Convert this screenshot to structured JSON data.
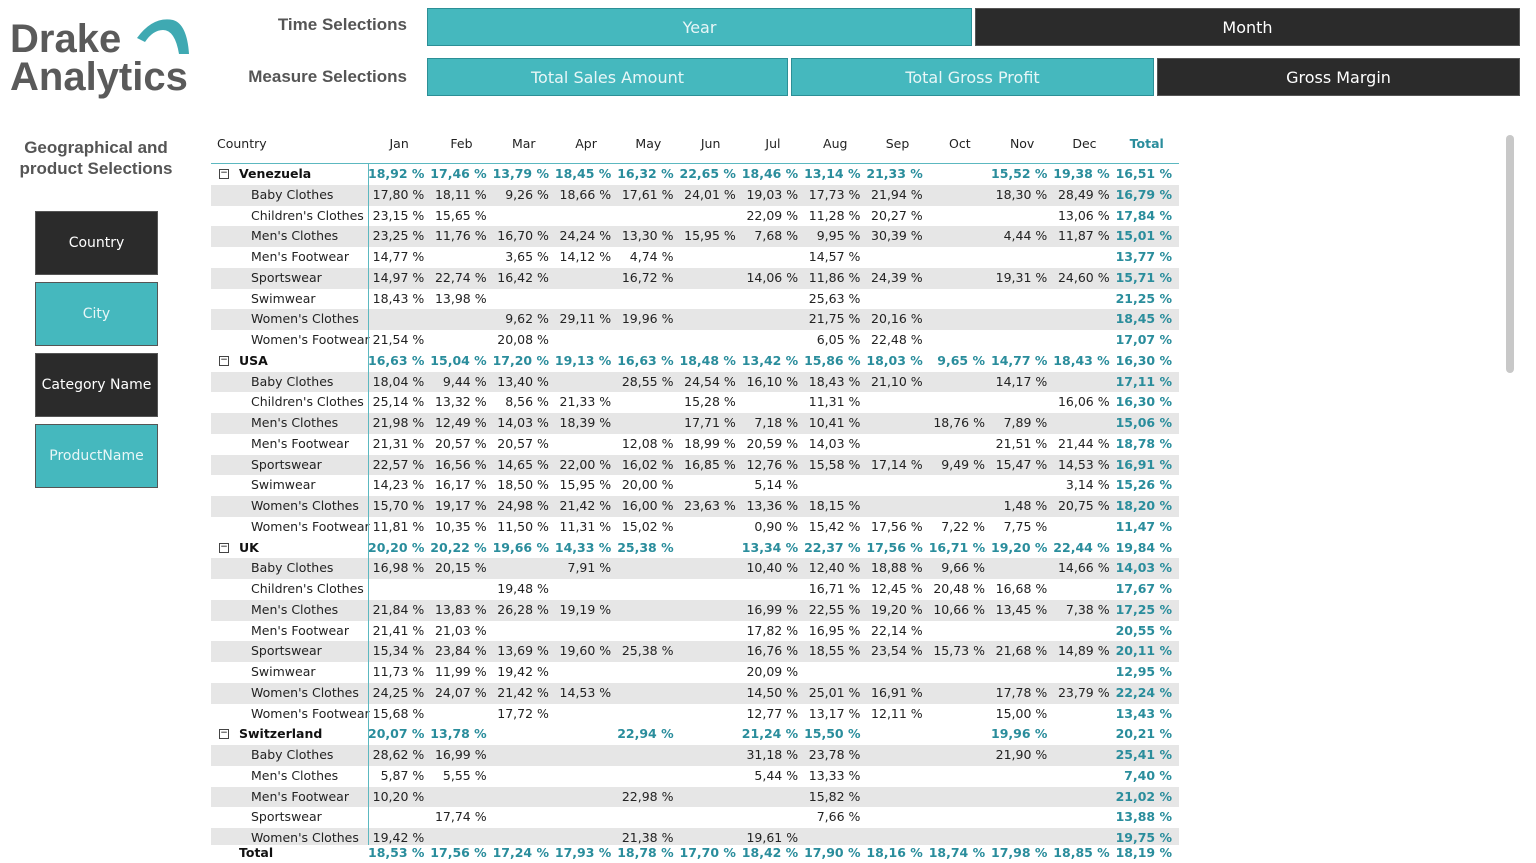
{
  "logo": {
    "line1": "Drake",
    "line2": "Analytics"
  },
  "time_selections": {
    "label": "Time Selections",
    "options": [
      "Year",
      "Month"
    ]
  },
  "measure_selections": {
    "label": "Measure Selections",
    "options": [
      "Total Sales Amount",
      "Total Gross Profit",
      "Gross Margin"
    ]
  },
  "slicer_panel": {
    "title": "Geographical and product Selections",
    "buttons": [
      "Country",
      "City",
      "Category Name",
      "ProductName"
    ]
  },
  "table": {
    "columns": [
      "Country",
      "Jan",
      "Feb",
      "Mar",
      "Apr",
      "May",
      "Jun",
      "Jul",
      "Aug",
      "Sep",
      "Oct",
      "Nov",
      "Dec",
      "Total"
    ],
    "groups": [
      {
        "name": "Venezuela",
        "values": [
          "18,92 %",
          "17,46 %",
          "13,79 %",
          "18,45 %",
          "16,32 %",
          "22,65 %",
          "18,46 %",
          "13,14 %",
          "21,33 %",
          null,
          "15,52 %",
          "19,38 %",
          "16,51 %"
        ],
        "products": [
          {
            "name": "Baby Clothes",
            "values": [
              "17,80 %",
              "18,11 %",
              "9,26 %",
              "18,66 %",
              "17,61 %",
              "24,01 %",
              "19,03 %",
              "17,73 %",
              "21,94 %",
              null,
              "18,30 %",
              "28,49 %",
              "16,79 %"
            ]
          },
          {
            "name": "Children's Clothes",
            "values": [
              "23,15 %",
              "15,65 %",
              null,
              null,
              null,
              null,
              "22,09 %",
              "11,28 %",
              "20,27 %",
              null,
              null,
              "13,06 %",
              "17,84 %"
            ]
          },
          {
            "name": "Men's Clothes",
            "values": [
              "23,25 %",
              "11,76 %",
              "16,70 %",
              "24,24 %",
              "13,30 %",
              "15,95 %",
              "7,68 %",
              "9,95 %",
              "30,39 %",
              null,
              "4,44 %",
              "11,87 %",
              "15,01 %"
            ]
          },
          {
            "name": "Men's Footwear",
            "values": [
              "14,77 %",
              null,
              "3,65 %",
              "14,12 %",
              "4,74 %",
              null,
              null,
              "14,57 %",
              null,
              null,
              null,
              null,
              "13,77 %"
            ]
          },
          {
            "name": "Sportswear",
            "values": [
              "14,97 %",
              "22,74 %",
              "16,42 %",
              null,
              "16,72 %",
              null,
              "14,06 %",
              "11,86 %",
              "24,39 %",
              null,
              "19,31 %",
              "24,60 %",
              "15,71 %"
            ]
          },
          {
            "name": "Swimwear",
            "values": [
              "18,43 %",
              "13,98 %",
              null,
              null,
              null,
              null,
              null,
              "25,63 %",
              null,
              null,
              null,
              null,
              "21,25 %"
            ]
          },
          {
            "name": "Women's Clothes",
            "values": [
              null,
              null,
              "9,62 %",
              "29,11 %",
              "19,96 %",
              null,
              null,
              "21,75 %",
              "20,16 %",
              null,
              null,
              null,
              "18,45 %"
            ]
          },
          {
            "name": "Women's Footwear",
            "values": [
              "21,54 %",
              null,
              "20,08 %",
              null,
              null,
              null,
              null,
              "6,05 %",
              "22,48 %",
              null,
              null,
              null,
              "17,07 %"
            ]
          }
        ]
      },
      {
        "name": "USA",
        "values": [
          "16,63 %",
          "15,04 %",
          "17,20 %",
          "19,13 %",
          "16,63 %",
          "18,48 %",
          "13,42 %",
          "15,86 %",
          "18,03 %",
          "9,65 %",
          "14,77 %",
          "18,43 %",
          "16,30 %"
        ],
        "products": [
          {
            "name": "Baby Clothes",
            "values": [
              "18,04 %",
              "9,44 %",
              "13,40 %",
              null,
              "28,55 %",
              "24,54 %",
              "16,10 %",
              "18,43 %",
              "21,10 %",
              null,
              "14,17 %",
              null,
              "17,11 %"
            ]
          },
          {
            "name": "Children's Clothes",
            "values": [
              "25,14 %",
              "13,32 %",
              "8,56 %",
              "21,33 %",
              null,
              "15,28 %",
              null,
              "11,31 %",
              null,
              null,
              null,
              "16,06 %",
              "16,30 %"
            ]
          },
          {
            "name": "Men's Clothes",
            "values": [
              "21,98 %",
              "12,49 %",
              "14,03 %",
              "18,39 %",
              null,
              "17,71 %",
              "7,18 %",
              "10,41 %",
              null,
              "18,76 %",
              "7,89 %",
              null,
              "15,06 %"
            ]
          },
          {
            "name": "Men's Footwear",
            "values": [
              "21,31 %",
              "20,57 %",
              "20,57 %",
              null,
              "12,08 %",
              "18,99 %",
              "20,59 %",
              "14,03 %",
              null,
              null,
              "21,51 %",
              "21,44 %",
              "18,78 %"
            ]
          },
          {
            "name": "Sportswear",
            "values": [
              "22,57 %",
              "16,56 %",
              "14,65 %",
              "22,00 %",
              "16,02 %",
              "16,85 %",
              "12,76 %",
              "15,58 %",
              "17,14 %",
              "9,49 %",
              "15,47 %",
              "14,53 %",
              "16,91 %"
            ]
          },
          {
            "name": "Swimwear",
            "values": [
              "14,23 %",
              "16,17 %",
              "18,50 %",
              "15,95 %",
              "20,00 %",
              null,
              "5,14 %",
              null,
              null,
              null,
              null,
              "3,14 %",
              "15,26 %"
            ]
          },
          {
            "name": "Women's Clothes",
            "values": [
              "15,70 %",
              "19,17 %",
              "24,98 %",
              "21,42 %",
              "16,00 %",
              "23,63 %",
              "13,36 %",
              "18,15 %",
              null,
              null,
              "1,48 %",
              "20,75 %",
              "18,20 %"
            ]
          },
          {
            "name": "Women's Footwear",
            "values": [
              "11,81 %",
              "10,35 %",
              "11,50 %",
              "11,31 %",
              "15,02 %",
              null,
              "0,90 %",
              "15,42 %",
              "17,56 %",
              "7,22 %",
              "7,75 %",
              null,
              "11,47 %"
            ]
          }
        ]
      },
      {
        "name": "UK",
        "values": [
          "20,20 %",
          "20,22 %",
          "19,66 %",
          "14,33 %",
          "25,38 %",
          null,
          "13,34 %",
          "22,37 %",
          "17,56 %",
          "16,71 %",
          "19,20 %",
          "22,44 %",
          "19,84 %"
        ],
        "products": [
          {
            "name": "Baby Clothes",
            "values": [
              "16,98 %",
              "20,15 %",
              null,
              "7,91 %",
              null,
              null,
              "10,40 %",
              "12,40 %",
              "18,88 %",
              "9,66 %",
              null,
              "14,66 %",
              "14,03 %"
            ]
          },
          {
            "name": "Children's Clothes",
            "values": [
              null,
              null,
              "19,48 %",
              null,
              null,
              null,
              null,
              "16,71 %",
              "12,45 %",
              "20,48 %",
              "16,68 %",
              null,
              "17,67 %"
            ]
          },
          {
            "name": "Men's Clothes",
            "values": [
              "21,84 %",
              "13,83 %",
              "26,28 %",
              "19,19 %",
              null,
              null,
              "16,99 %",
              "22,55 %",
              "19,20 %",
              "10,66 %",
              "13,45 %",
              "7,38 %",
              "17,25 %"
            ]
          },
          {
            "name": "Men's Footwear",
            "values": [
              "21,41 %",
              "21,03 %",
              null,
              null,
              null,
              null,
              "17,82 %",
              "16,95 %",
              "22,14 %",
              null,
              null,
              null,
              "20,55 %"
            ]
          },
          {
            "name": "Sportswear",
            "values": [
              "15,34 %",
              "23,84 %",
              "13,69 %",
              "19,60 %",
              "25,38 %",
              null,
              "16,76 %",
              "18,55 %",
              "23,54 %",
              "15,73 %",
              "21,68 %",
              "14,89 %",
              "20,11 %"
            ]
          },
          {
            "name": "Swimwear",
            "values": [
              "11,73 %",
              "11,99 %",
              "19,42 %",
              null,
              null,
              null,
              "20,09 %",
              null,
              null,
              null,
              null,
              null,
              "12,95 %"
            ]
          },
          {
            "name": "Women's Clothes",
            "values": [
              "24,25 %",
              "24,07 %",
              "21,42 %",
              "14,53 %",
              null,
              null,
              "14,50 %",
              "25,01 %",
              "16,91 %",
              null,
              "17,78 %",
              "23,79 %",
              "22,24 %"
            ]
          },
          {
            "name": "Women's Footwear",
            "values": [
              "15,68 %",
              null,
              "17,72 %",
              null,
              null,
              null,
              "12,77 %",
              "13,17 %",
              "12,11 %",
              null,
              "15,00 %",
              null,
              "13,43 %"
            ]
          }
        ]
      },
      {
        "name": "Switzerland",
        "values": [
          "20,07 %",
          "13,78 %",
          null,
          null,
          "22,94 %",
          null,
          "21,24 %",
          "15,50 %",
          null,
          null,
          "19,96 %",
          null,
          "20,21 %"
        ],
        "products": [
          {
            "name": "Baby Clothes",
            "values": [
              "28,62 %",
              "16,99 %",
              null,
              null,
              null,
              null,
              "31,18 %",
              "23,78 %",
              null,
              null,
              "21,90 %",
              null,
              "25,41 %"
            ]
          },
          {
            "name": "Men's Clothes",
            "values": [
              "5,87 %",
              "5,55 %",
              null,
              null,
              null,
              null,
              "5,44 %",
              "13,33 %",
              null,
              null,
              null,
              null,
              "7,40 %"
            ]
          },
          {
            "name": "Men's Footwear",
            "values": [
              "10,20 %",
              null,
              null,
              null,
              "22,98 %",
              null,
              null,
              "15,82 %",
              null,
              null,
              null,
              null,
              "21,02 %"
            ]
          },
          {
            "name": "Sportswear",
            "values": [
              null,
              "17,74 %",
              null,
              null,
              null,
              null,
              null,
              "7,66 %",
              null,
              null,
              null,
              null,
              "13,88 %"
            ]
          },
          {
            "name": "Women's Clothes",
            "values": [
              "19,42 %",
              null,
              null,
              null,
              "21,38 %",
              null,
              "19,61 %",
              null,
              null,
              null,
              null,
              null,
              "19,75 %"
            ]
          }
        ]
      }
    ],
    "total": {
      "label": "Total",
      "values": [
        "18,53 %",
        "17,56 %",
        "17,24 %",
        "17,93 %",
        "18,78 %",
        "17,70 %",
        "18,42 %",
        "17,90 %",
        "18,16 %",
        "18,74 %",
        "17,98 %",
        "18,85 %",
        "18,19 %"
      ]
    }
  }
}
